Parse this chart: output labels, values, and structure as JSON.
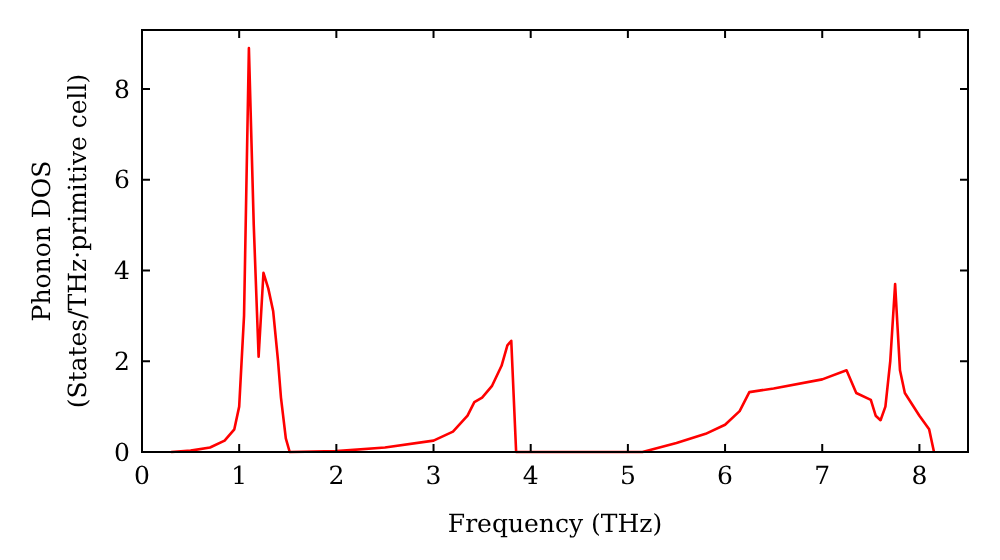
{
  "chart_data": {
    "type": "line",
    "xlabel": "Frequency (THz)",
    "ylabel": "Phonon DOS\n(States/THz·primitive cell)",
    "xlim": [
      0,
      8.5
    ],
    "ylim": [
      0,
      9.3
    ],
    "xticks": [
      0,
      1,
      2,
      3,
      4,
      5,
      6,
      7,
      8
    ],
    "yticks": [
      0,
      2,
      4,
      6,
      8
    ],
    "grid": false,
    "marker": "none",
    "line_style": "solid",
    "series": [
      {
        "color": "#ff0000",
        "x": [
          0.3,
          0.5,
          0.7,
          0.85,
          0.95,
          1.0,
          1.05,
          1.1,
          1.15,
          1.2,
          1.25,
          1.3,
          1.35,
          1.4,
          1.43,
          1.48,
          1.52,
          2.0,
          2.5,
          3.0,
          3.2,
          3.35,
          3.42,
          3.5,
          3.6,
          3.7,
          3.76,
          3.8,
          3.85,
          5.15,
          5.5,
          5.8,
          6.0,
          6.15,
          6.25,
          6.5,
          7.0,
          7.25,
          7.35,
          7.5,
          7.55,
          7.6,
          7.65,
          7.7,
          7.75,
          7.8,
          7.85,
          8.0,
          8.1,
          8.15
        ],
        "values": [
          0,
          0.03,
          0.1,
          0.25,
          0.5,
          1.0,
          3,
          8.9,
          5,
          2.1,
          3.95,
          3.6,
          3.1,
          2,
          1.2,
          0.3,
          0,
          0.02,
          0.1,
          0.25,
          0.45,
          0.8,
          1.1,
          1.2,
          1.45,
          1.9,
          2.35,
          2.45,
          0,
          0,
          0.2,
          0.4,
          0.6,
          0.9,
          1.32,
          1.4,
          1.6,
          1.8,
          1.3,
          1.15,
          0.8,
          0.7,
          1.0,
          2.0,
          3.7,
          1.8,
          1.3,
          0.8,
          0.5,
          0
        ]
      }
    ]
  }
}
